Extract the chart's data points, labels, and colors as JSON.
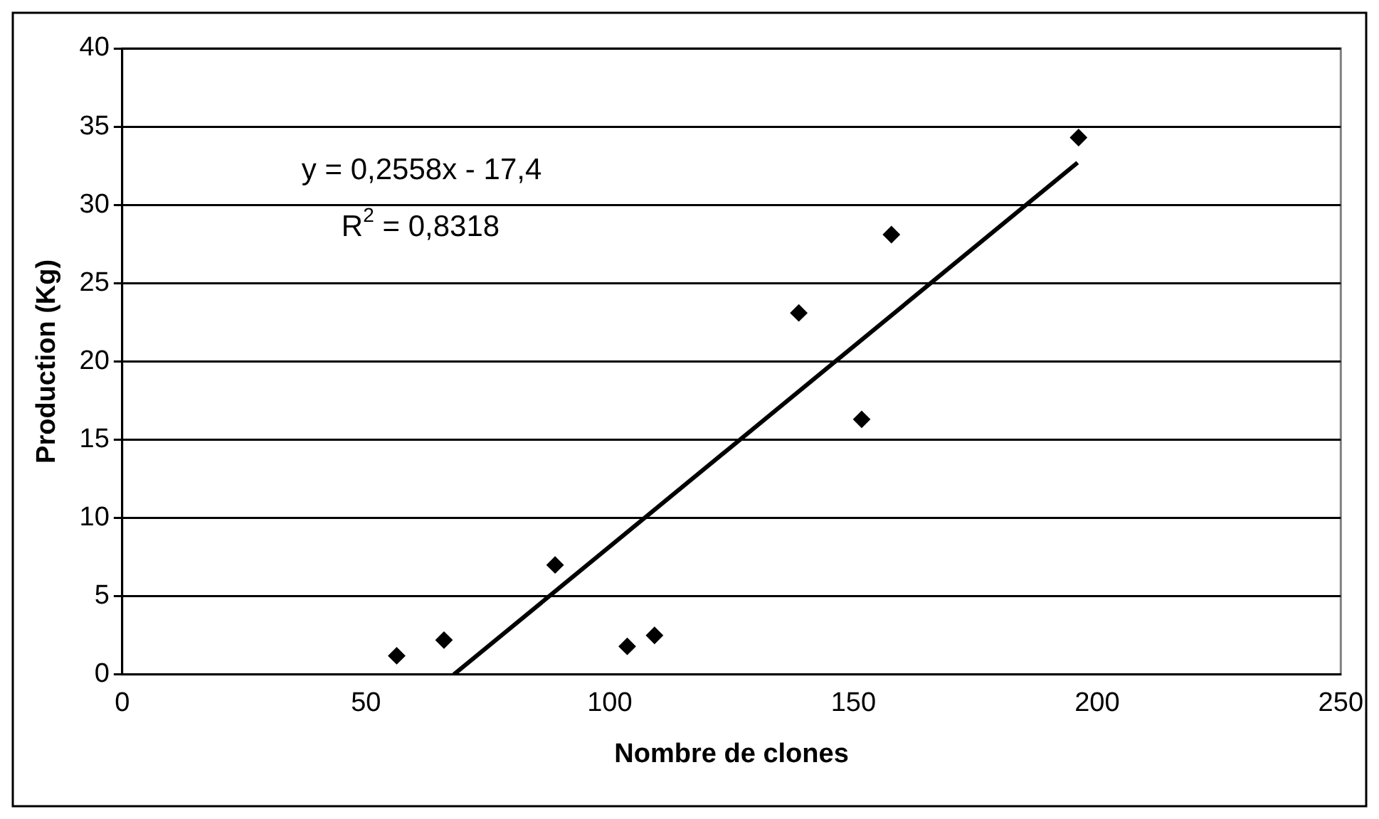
{
  "chart_data": {
    "type": "scatter",
    "xlabel": "Nombre de clones",
    "ylabel": "Production (Kg)",
    "series": [
      {
        "color": "#000000",
        "marker": "diamond",
        "x": [
          56.3,
          66.0,
          88.8,
          103.6,
          109.2,
          138.8,
          151.7,
          157.8,
          196.2
        ],
        "values": [
          1.2,
          2.2,
          7.0,
          1.8,
          2.5,
          23.1,
          16.3,
          28.1,
          34.3
        ]
      },
      {
        "type": "line",
        "color": "#000000",
        "marker": "none",
        "x": [
          68,
          196
        ],
        "values": [
          0,
          32.7
        ]
      }
    ],
    "annotations": [
      "y = 0,2558x - 17,4",
      "R$^{2}$ = 0,8318"
    ],
    "xlim": [
      0,
      250
    ],
    "xticks": [
      0,
      50,
      100,
      150,
      200,
      250
    ],
    "ylim": [
      0,
      40
    ],
    "yticks": [
      0,
      5,
      10,
      15,
      20,
      25,
      30,
      35,
      40
    ],
    "grid": "y",
    "legend": false
  }
}
